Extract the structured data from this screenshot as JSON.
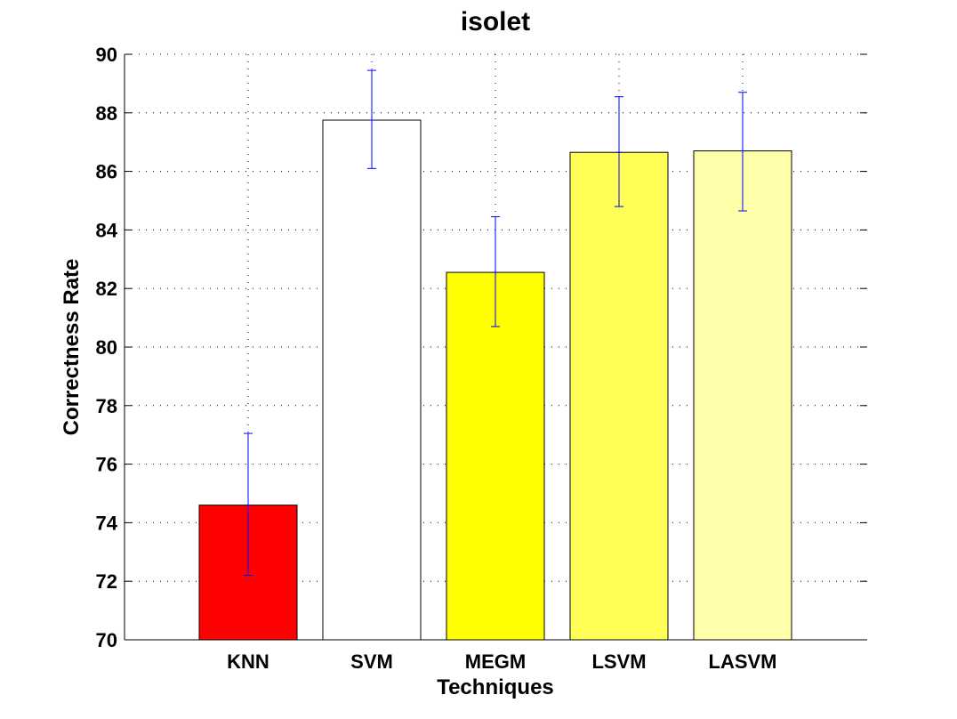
{
  "chart_data": {
    "type": "bar",
    "title": "isolet",
    "xlabel": "Techniques",
    "ylabel": "Correctness Rate",
    "categories": [
      "KNN",
      "SVM",
      "MEGM",
      "LSVM",
      "LASVM"
    ],
    "values": [
      74.6,
      87.75,
      82.55,
      86.65,
      86.7
    ],
    "error_low": [
      72.2,
      86.1,
      80.7,
      84.8,
      84.65
    ],
    "error_high": [
      77.05,
      89.45,
      84.45,
      88.55,
      88.7
    ],
    "bar_colors": [
      "#ff0000",
      "#ffffff",
      "#ffff00",
      "#ffff55",
      "#ffffaa"
    ],
    "error_bar_color": "#0000ff",
    "ylim": [
      70,
      90
    ],
    "yticks": [
      70,
      72,
      74,
      76,
      78,
      80,
      82,
      84,
      86,
      88,
      90
    ],
    "grid": true
  }
}
